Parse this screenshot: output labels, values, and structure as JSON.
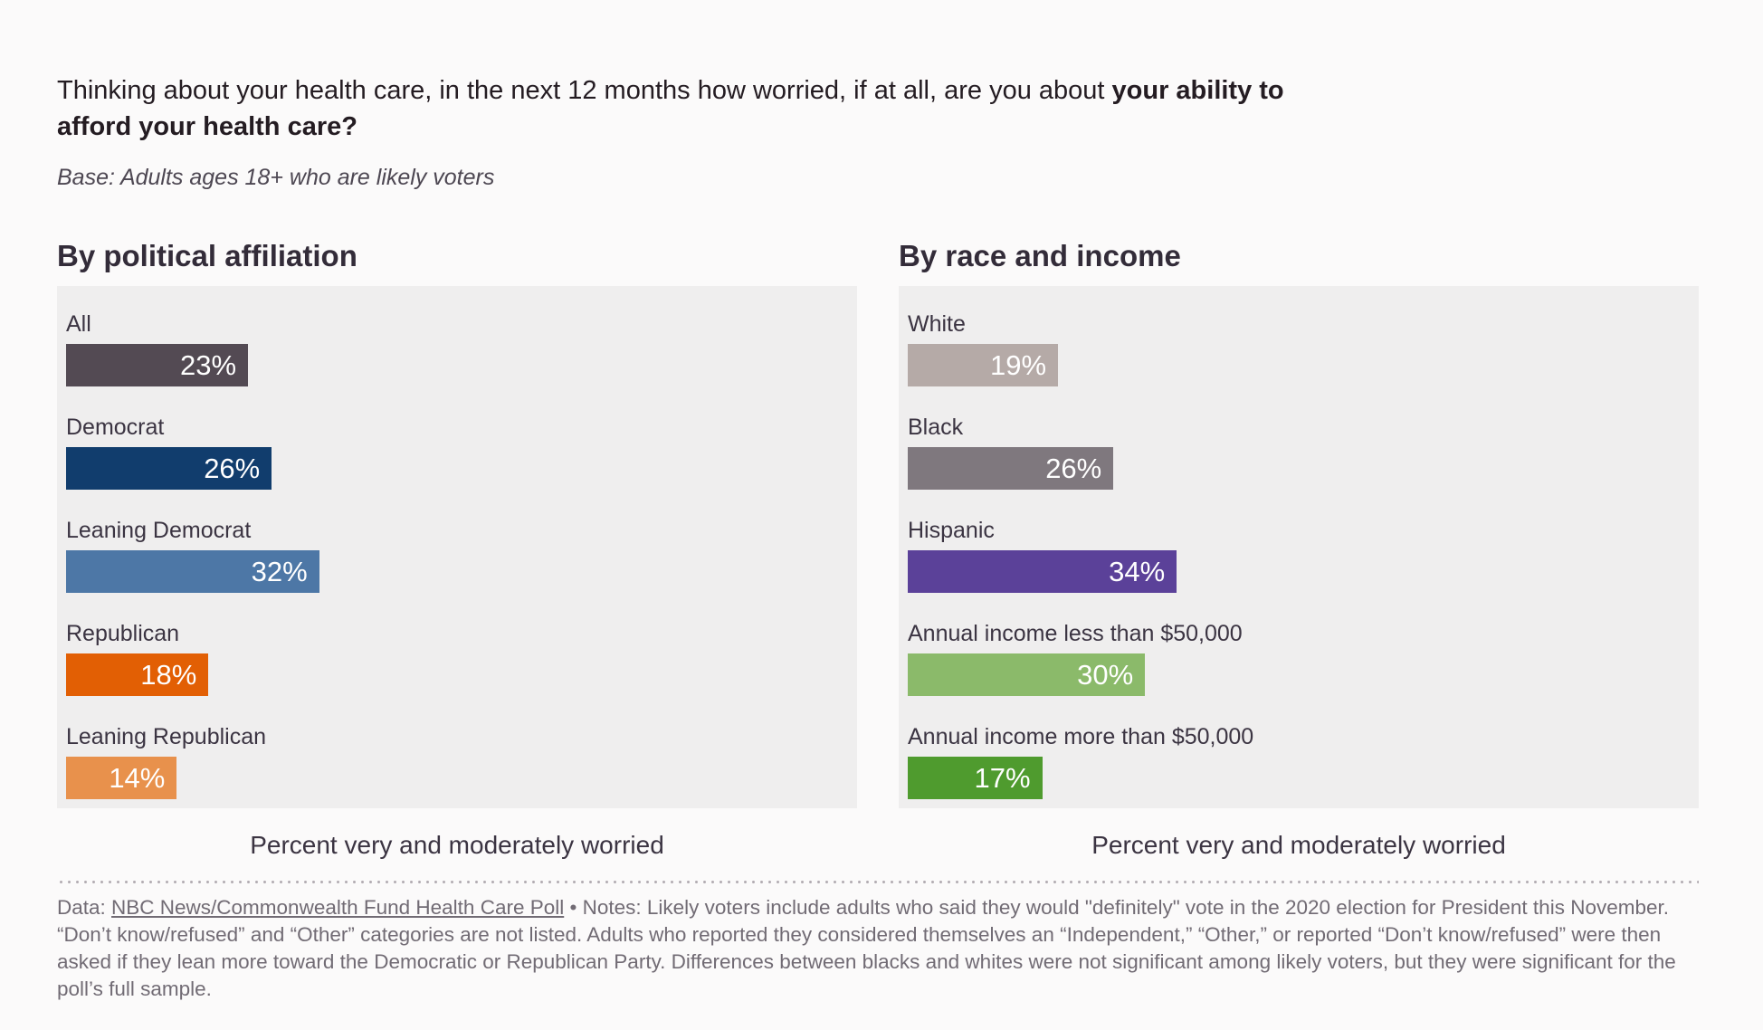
{
  "title": {
    "part1": "Thinking about your health care, in the next 12 months how worried, if at all, are you about ",
    "part2": "your ability to afford your health care?"
  },
  "base_note": "Base: Adults ages 18+ who are likely voters",
  "colors": {
    "page_background": "#fbfafa",
    "panel_background": "#efeeee",
    "label_text": "#3b3442",
    "value_text": "#ffffff",
    "footnote_text": "#716b74"
  },
  "chart_data": [
    {
      "type": "bar",
      "orientation": "horizontal",
      "title": "By political affiliation",
      "categories": [
        "All",
        "Democrat",
        "Leaning Democrat",
        "Republican",
        "Leaning Republican"
      ],
      "values": [
        23,
        26,
        32,
        18,
        14
      ],
      "value_suffix": "%",
      "bar_colors": [
        "#534a53",
        "#113d6d",
        "#4d77a6",
        "#e25f04",
        "#e8914c"
      ],
      "xlabel": "Percent very and moderately worried",
      "xlim": [
        0,
        100
      ],
      "grid": false,
      "legend": false
    },
    {
      "type": "bar",
      "orientation": "horizontal",
      "title": "By race and income",
      "categories": [
        "White",
        "Black",
        "Hispanic",
        "Annual income less than $50,000",
        "Annual income more than $50,000"
      ],
      "values": [
        19,
        26,
        34,
        30,
        17
      ],
      "value_suffix": "%",
      "bar_colors": [
        "#b5aaa7",
        "#7f787e",
        "#5b4199",
        "#8bba6a",
        "#4f9b2e"
      ],
      "xlabel": "Percent very and moderately worried",
      "xlim": [
        0,
        100
      ],
      "grid": false,
      "legend": false
    }
  ],
  "footnote": {
    "data_prefix": "Data: ",
    "source_link": "NBC News/Commonwealth Fund Health Care Poll",
    "rest": " • Notes: Likely voters include adults who said they would \"definitely\" vote in the 2020 election for President this November. “Don’t know/refused” and “Other” categories are not listed. Adults who reported they considered themselves an “Independent,” “Other,” or reported “Don’t know/refused” were then asked if they lean more toward the Democratic or Republican Party. Differences between blacks and whites were not significant among likely voters, but they were significant for the poll’s full sample."
  }
}
